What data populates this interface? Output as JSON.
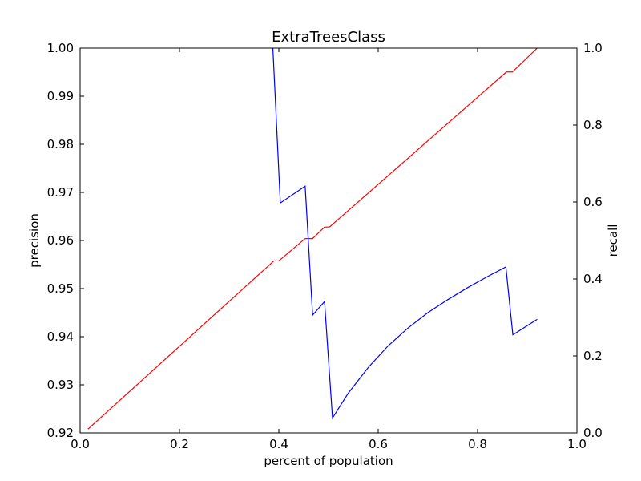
{
  "chart_data": {
    "type": "line",
    "title": "ExtraTreesClass",
    "xlabel": "percent of population",
    "xlim": [
      0.0,
      1.0
    ],
    "x_ticks": [
      "0.0",
      "0.2",
      "0.4",
      "0.6",
      "0.8",
      "1.0"
    ],
    "grid": false,
    "y_left": {
      "label": "precision",
      "color": "#0000ff",
      "ylim": [
        0.92,
        1.0
      ],
      "ticks": [
        "0.92",
        "0.93",
        "0.94",
        "0.95",
        "0.96",
        "0.97",
        "0.98",
        "0.99",
        "1.00"
      ]
    },
    "y_right": {
      "label": "recall",
      "color": "#ff0000",
      "ylim": [
        0.0,
        1.0
      ],
      "ticks": [
        "0.0",
        "0.2",
        "0.4",
        "0.6",
        "0.8",
        "1.0"
      ]
    },
    "series": [
      {
        "name": "precision",
        "axis": "left",
        "color": "#0000ff",
        "x": [
          0.388,
          0.403,
          0.453,
          0.468,
          0.492,
          0.508,
          0.54,
          0.58,
          0.62,
          0.66,
          0.7,
          0.74,
          0.78,
          0.82,
          0.857,
          0.871,
          0.92
        ],
        "y": [
          1.0,
          0.9678,
          0.9713,
          0.9445,
          0.9473,
          0.9231,
          0.9283,
          0.9336,
          0.9381,
          0.9418,
          0.945,
          0.9477,
          0.9502,
          0.9525,
          0.9545,
          0.9404,
          0.9436
        ]
      },
      {
        "name": "recall",
        "axis": "right",
        "color": "#ff0000",
        "x": [
          0.016,
          0.39,
          0.4,
          0.453,
          0.468,
          0.492,
          0.502,
          0.858,
          0.87,
          0.92
        ],
        "y": [
          0.01,
          0.447,
          0.447,
          0.505,
          0.505,
          0.535,
          0.535,
          0.938,
          0.938,
          1.0
        ]
      }
    ]
  }
}
